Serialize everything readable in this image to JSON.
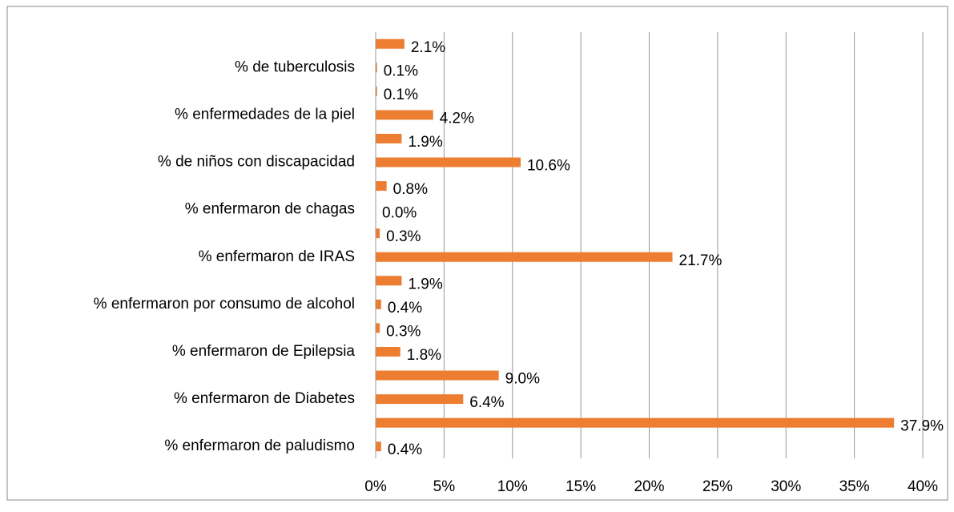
{
  "chart_data": {
    "type": "barh",
    "categories": [
      null,
      "% de tuberculosis",
      null,
      "%  enfermedades de la piel",
      null,
      "% de niños con discapacidad",
      null,
      "% enfermaron de chagas",
      null,
      "% enfermaron de IRAS",
      null,
      "% enfermaron por consumo de alcohol",
      null,
      "% enfermaron de Epilepsia",
      null,
      "% enfermaron de Diabetes",
      null,
      "% enfermaron de paludismo"
    ],
    "values": [
      2.1,
      0.1,
      0.1,
      4.2,
      1.9,
      10.6,
      0.8,
      0.0,
      0.3,
      21.7,
      1.9,
      0.4,
      0.3,
      1.8,
      9.0,
      6.4,
      37.9,
      0.4
    ],
    "value_labels": [
      "2.1%",
      "0.1%",
      "0.1%",
      "4.2%",
      "1.9%",
      "10.6%",
      "0.8%",
      "0.0%",
      "0.3%",
      "21.7%",
      "1.9%",
      "0.4%",
      "0.3%",
      "1.8%",
      "9.0%",
      "6.4%",
      "37.9%",
      "0.4%"
    ],
    "color": "#ed7d31",
    "xlim": [
      0,
      40
    ],
    "xticks": [
      {
        "value": 0,
        "label": "0%"
      },
      {
        "value": 5,
        "label": "5%"
      },
      {
        "value": 10,
        "label": "10%"
      },
      {
        "value": 15,
        "label": "15%"
      },
      {
        "value": 20,
        "label": "20%"
      },
      {
        "value": 25,
        "label": "25%"
      },
      {
        "value": 30,
        "label": "30%"
      },
      {
        "value": 35,
        "label": "35%"
      },
      {
        "value": 40,
        "label": "40%"
      }
    ],
    "grid": true
  }
}
